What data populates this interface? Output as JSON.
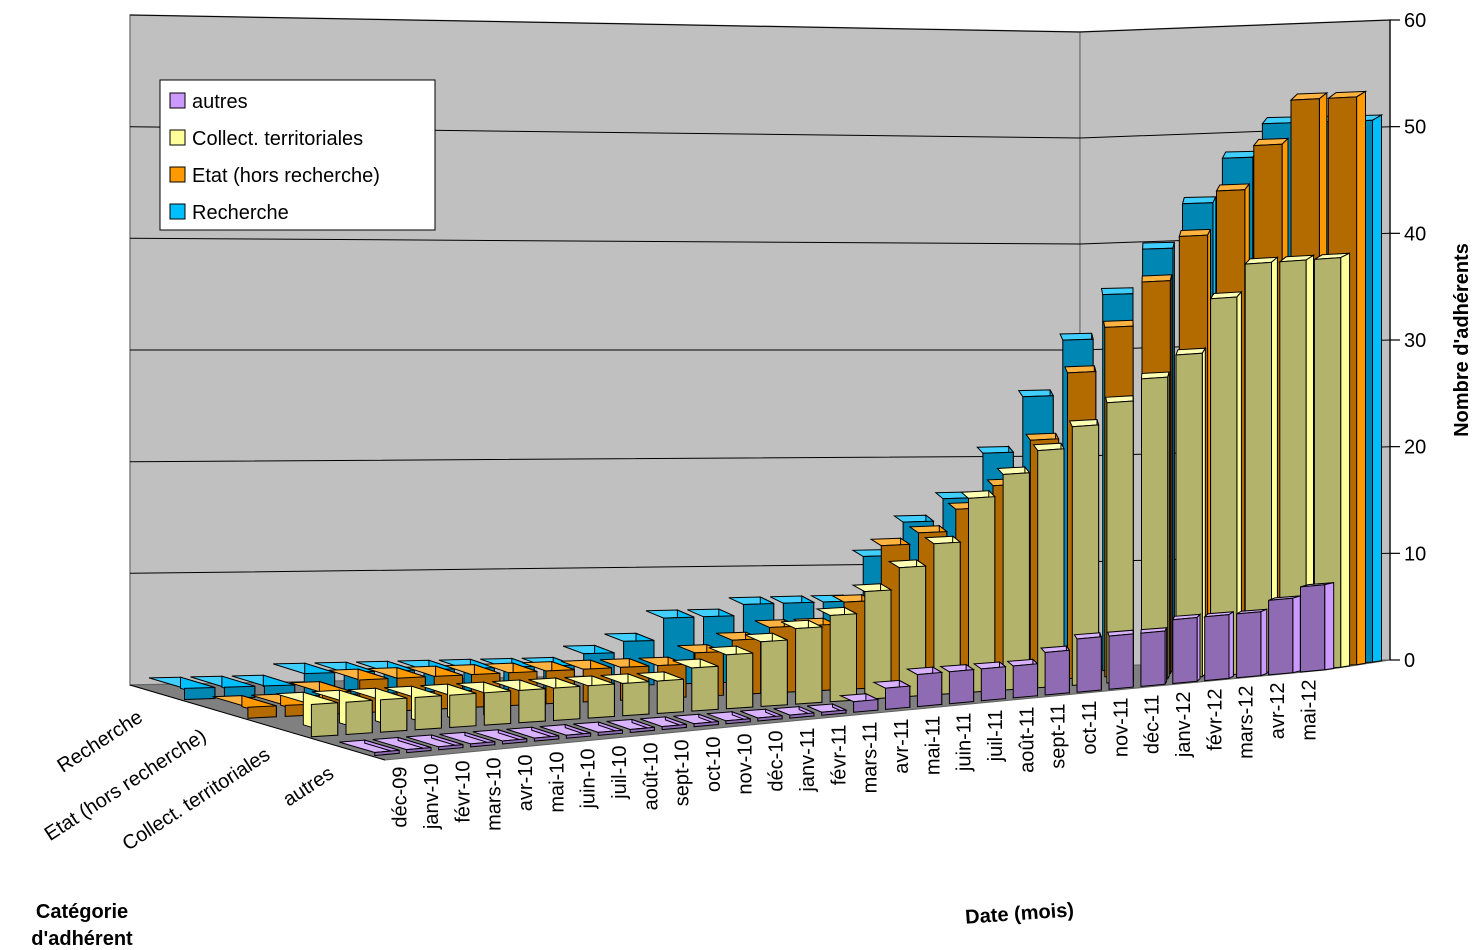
{
  "chart_data": {
    "type": "bar",
    "subtype": "3d-column",
    "title": "",
    "xlabel": "Date (mois)",
    "ylabel": "Nombre d'adhérents",
    "zlabel": "Catégorie d'adhérent",
    "zlabel_lines": [
      "Catégorie",
      "d'adhérent"
    ],
    "ylim": [
      0,
      60
    ],
    "yticks": [
      "0",
      "10",
      "20",
      "30",
      "40",
      "50",
      "60"
    ],
    "grid": true,
    "legend_position": "top-left",
    "categories": [
      "déc-09",
      "janv-10",
      "févr-10",
      "mars-10",
      "avr-10",
      "mai-10",
      "juin-10",
      "juil-10",
      "août-10",
      "sept-10",
      "oct-10",
      "nov-10",
      "déc-10",
      "janv-11",
      "févr-11",
      "mars-11",
      "avr-11",
      "mai-11",
      "juin-11",
      "juil-11",
      "août-11",
      "sept-11",
      "oct-11",
      "nov-11",
      "déc-11",
      "janv-12",
      "févr-12",
      "mars-12",
      "avr-12",
      "mai-12"
    ],
    "depth_categories": [
      "Recherche",
      "Etat (hors recherche)",
      "Collect. territoriales",
      "autres"
    ],
    "legend": [
      "autres",
      "Collect. territoriales",
      "Etat (hors recherche)",
      "Recherche"
    ],
    "series": [
      {
        "name": "Recherche",
        "color": "#00BFFF",
        "values": [
          1,
          1,
          1,
          2,
          2,
          2,
          2,
          2,
          2,
          2,
          3,
          4,
          6,
          6,
          7,
          7,
          7,
          11,
          14,
          16,
          20,
          25,
          30,
          34,
          38,
          42,
          46,
          49,
          49,
          49
        ]
      },
      {
        "name": "Etat (hors recherche)",
        "color": "#FF9900",
        "values": [
          1,
          1,
          2,
          3,
          3,
          3,
          3,
          3,
          3,
          3,
          3,
          3,
          4,
          5,
          6,
          6,
          8,
          13,
          14,
          16,
          18,
          22,
          28,
          32,
          36,
          40,
          44,
          48,
          52,
          52
        ]
      },
      {
        "name": "Collect. territoriales",
        "color": "#FFFF99",
        "values": [
          3,
          3,
          3,
          3,
          3,
          3,
          3,
          3,
          3,
          3,
          3,
          4,
          5,
          6,
          7,
          8,
          10,
          12,
          14,
          18,
          20,
          22,
          24,
          26,
          28,
          30,
          35,
          38,
          38,
          38
        ]
      },
      {
        "name": "autres",
        "color": "#CC99FF",
        "values": [
          0,
          0,
          0,
          0,
          0,
          0,
          0,
          0,
          0,
          0,
          0,
          0,
          0,
          0,
          0,
          1,
          2,
          3,
          3,
          3,
          3,
          4,
          5,
          5,
          5,
          6,
          6,
          6,
          7,
          8
        ]
      }
    ]
  }
}
